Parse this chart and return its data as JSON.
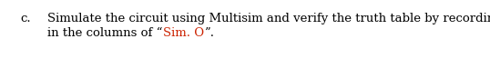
{
  "background_color": "#ffffff",
  "label_letter": "c.",
  "label_color": "#000000",
  "line1_text": "Simulate the circuit using Multisim and verify the truth table by recording the outputs",
  "line2_before_red": "in the columns of “",
  "line2_red": "Sim. O",
  "line2_after_red": "”.",
  "black_color": "#000000",
  "red_color": "#cc2200",
  "fontsize": 9.5,
  "fontfamily": "serif",
  "fig_width": 5.38,
  "fig_height": 0.75,
  "dpi": 100
}
